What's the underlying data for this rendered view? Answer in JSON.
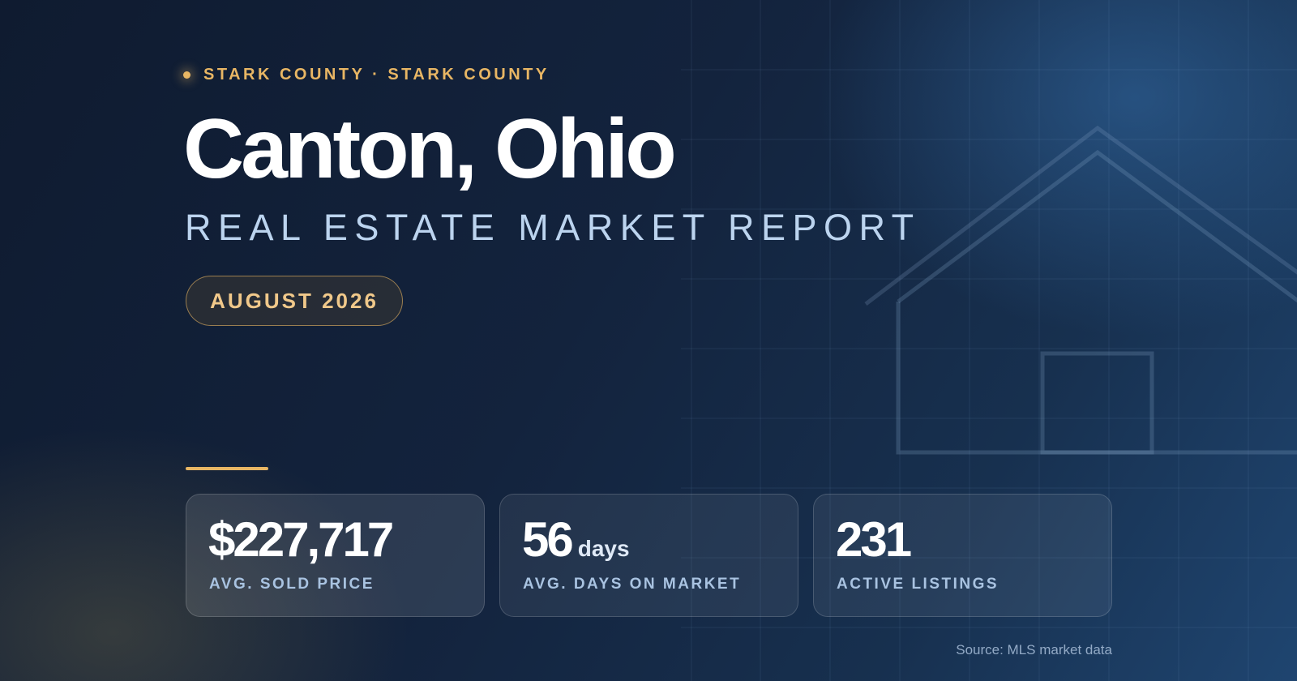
{
  "header": {
    "eyebrow": "STARK COUNTY · STARK COUNTY",
    "title": "Canton, Ohio",
    "subtitle": "REAL ESTATE MARKET REPORT",
    "period": "AUGUST 2026"
  },
  "stats": [
    {
      "value": "$227,717",
      "unit": "",
      "label": "AVG. SOLD PRICE"
    },
    {
      "value": "56",
      "unit": "days",
      "label": "AVG. DAYS ON MARKET"
    },
    {
      "value": "231",
      "unit": "",
      "label": "ACTIVE LISTINGS"
    }
  ],
  "footer": {
    "source": "Source: MLS market data"
  },
  "icons": {
    "decoration": "house-outline-icon",
    "bullet": "dot-icon"
  },
  "colors": {
    "accent": "#e8b664",
    "background_dark": "#0f1b30",
    "background_light": "#1f4570",
    "subtitle": "#bcd4ef"
  }
}
